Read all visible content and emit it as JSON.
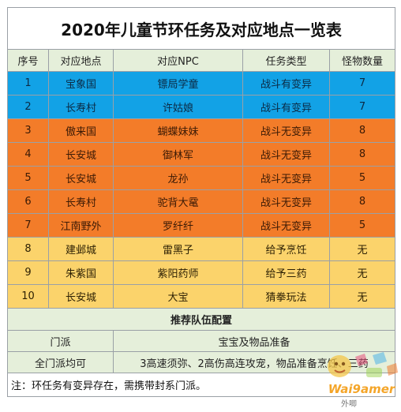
{
  "title": "2020年儿童节环任务及对应地点一览表",
  "headers": [
    "序号",
    "对应地点",
    "对应NPC",
    "任务类型",
    "怪物数量"
  ],
  "rows": [
    {
      "no": "1",
      "place": "宝象国",
      "npc": "镖局学童",
      "type": "战斗有变异",
      "count": "7",
      "color": "blue"
    },
    {
      "no": "2",
      "place": "长寿村",
      "npc": "许姑娘",
      "type": "战斗有变异",
      "count": "7",
      "color": "blue"
    },
    {
      "no": "3",
      "place": "傲来国",
      "npc": "蝴蝶妹妹",
      "type": "战斗无变异",
      "count": "8",
      "color": "orange"
    },
    {
      "no": "4",
      "place": "长安城",
      "npc": "御林军",
      "type": "战斗无变异",
      "count": "8",
      "color": "orange"
    },
    {
      "no": "5",
      "place": "长安城",
      "npc": "龙孙",
      "type": "战斗无变异",
      "count": "5",
      "color": "orange"
    },
    {
      "no": "6",
      "place": "长寿村",
      "npc": "驼背大鼋",
      "type": "战斗无变异",
      "count": "8",
      "color": "orange"
    },
    {
      "no": "7",
      "place": "江南野外",
      "npc": "罗纤纤",
      "type": "战斗无变异",
      "count": "5",
      "color": "orange"
    },
    {
      "no": "8",
      "place": "建邺城",
      "npc": "雷黑子",
      "type": "给予烹饪",
      "count": "无",
      "color": "yellow"
    },
    {
      "no": "9",
      "place": "朱紫国",
      "npc": "紫阳药师",
      "type": "给予三药",
      "count": "无",
      "color": "yellow"
    },
    {
      "no": "10",
      "place": "长安城",
      "npc": "大宝",
      "type": "猜拳玩法",
      "count": "无",
      "color": "yellow"
    }
  ],
  "team_section": "推荐队伍配置",
  "team_rows": [
    {
      "left": "门派",
      "right": "宝宝及物品准备"
    },
    {
      "left": "全门派均可",
      "right": "3高速须弥、2高伤高连攻宠，物品准备烹饪、三药"
    }
  ],
  "note": "注：环任务有变异存在，需携带封系门派。",
  "watermark_text": "Wai9amer",
  "watermark_sub": "外唧"
}
